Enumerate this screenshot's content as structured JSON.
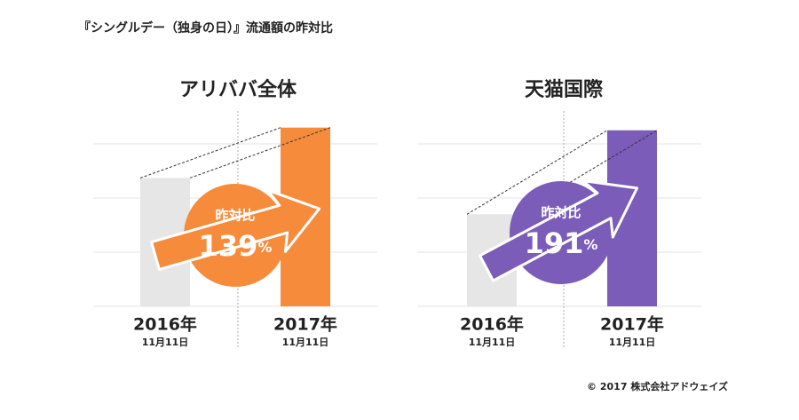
{
  "title": "『シングルデー（独身の日）』流通額の昨対比",
  "credit": "© 2017 株式会社アドウェイズ",
  "chart_data": [
    {
      "type": "bar",
      "title": "アリババ全体",
      "categories": [
        "2016年",
        "2017年"
      ],
      "sublabels": [
        "11月11日",
        "11月11日"
      ],
      "values": [
        2.37,
        3.3
      ],
      "colors": [
        "#e6e6e6",
        "#f68b3c"
      ],
      "ylim": [
        0,
        3.5
      ],
      "yticks": [
        0,
        1,
        2,
        3
      ],
      "grid": true,
      "annotation": {
        "label": "昨対比",
        "value": 139,
        "unit": "%",
        "color": "#f68b3c"
      }
    },
    {
      "type": "bar",
      "title": "天猫国際",
      "categories": [
        "2016年",
        "2017年"
      ],
      "sublabels": [
        "11月11日",
        "11月11日"
      ],
      "values": [
        1.7,
        3.25
      ],
      "colors": [
        "#e6e6e6",
        "#7b5cb8"
      ],
      "ylim": [
        0,
        3.5
      ],
      "yticks": [
        0,
        1,
        2,
        3
      ],
      "grid": true,
      "annotation": {
        "label": "昨対比",
        "value": 191,
        "unit": "%",
        "color": "#7b5cb8"
      }
    }
  ]
}
